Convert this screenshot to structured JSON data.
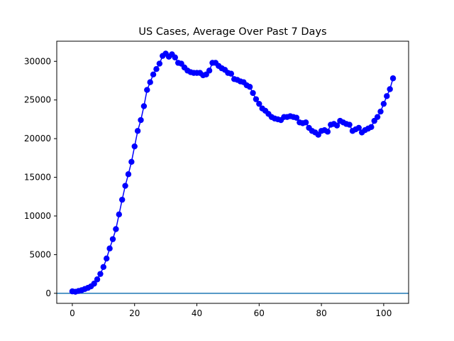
{
  "chart_data": {
    "type": "line",
    "title": "US Cases, Average Over Past 7 Days",
    "xlabel": "",
    "ylabel": "",
    "xlim": [
      -5,
      108
    ],
    "ylim": [
      -1300,
      32600
    ],
    "xticks": [
      0,
      20,
      40,
      60,
      80,
      100
    ],
    "yticks": [
      0,
      5000,
      10000,
      15000,
      20000,
      25000,
      30000
    ],
    "grid": false,
    "legend": "none",
    "horizontal_reference_line": 0,
    "colors": {
      "series": "#0000ff",
      "reference_line": "#1f77b4",
      "axes": "#000000"
    },
    "x": [
      0,
      1,
      2,
      3,
      4,
      5,
      6,
      7,
      8,
      9,
      10,
      11,
      12,
      13,
      14,
      15,
      16,
      17,
      18,
      19,
      20,
      21,
      22,
      23,
      24,
      25,
      26,
      27,
      28,
      29,
      30,
      31,
      32,
      33,
      34,
      35,
      36,
      37,
      38,
      39,
      40,
      41,
      42,
      43,
      44,
      45,
      46,
      47,
      48,
      49,
      50,
      51,
      52,
      53,
      54,
      55,
      56,
      57,
      58,
      59,
      60,
      61,
      62,
      63,
      64,
      65,
      66,
      67,
      68,
      69,
      70,
      71,
      72,
      73,
      74,
      75,
      76,
      77,
      78,
      79,
      80,
      81,
      82,
      83,
      84,
      85,
      86,
      87,
      88,
      89,
      90,
      91,
      92,
      93,
      94,
      95,
      96,
      97,
      98,
      99,
      100,
      101,
      102,
      103
    ],
    "series": [
      {
        "name": "",
        "values": [
          250,
          200,
          300,
          400,
          550,
          700,
          900,
          1250,
          1800,
          2500,
          3400,
          4500,
          5800,
          7000,
          8300,
          10200,
          12100,
          13900,
          15400,
          17000,
          19000,
          21000,
          22400,
          24200,
          26300,
          27300,
          28300,
          29000,
          29700,
          30700,
          31000,
          30600,
          30900,
          30500,
          29800,
          29700,
          29200,
          28800,
          28600,
          28500,
          28500,
          28500,
          28200,
          28300,
          28800,
          29800,
          29800,
          29400,
          29100,
          28900,
          28500,
          28400,
          27700,
          27600,
          27400,
          27300,
          26900,
          26700,
          25900,
          25100,
          24500,
          23900,
          23600,
          23200,
          22800,
          22600,
          22500,
          22400,
          22800,
          22800,
          22900,
          22800,
          22700,
          22100,
          22000,
          22100,
          21400,
          21000,
          20800,
          20500,
          21000,
          21100,
          20900,
          21800,
          21900,
          21700,
          22300,
          22100,
          21900,
          21800,
          21000,
          21200,
          21400,
          20800,
          21100,
          21300,
          21500,
          22300,
          22800,
          23500,
          24500,
          25500,
          26400,
          27800
        ]
      }
    ]
  }
}
